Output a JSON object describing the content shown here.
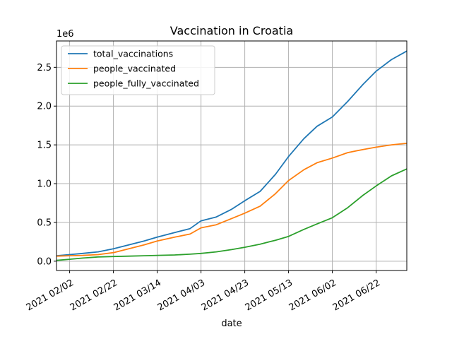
{
  "chart_data": {
    "type": "line",
    "title": "Vaccination in Croatia",
    "xlabel": "date",
    "ylabel": "",
    "y_offset_label": "1e6",
    "grid": true,
    "legend_position": "upper-left",
    "x_tick_labels": [
      "2021 02/02",
      "2021 02/22",
      "2021 03/14",
      "2021 04/03",
      "2021 04/23",
      "2021 05/13",
      "2021 06/02",
      "2021 06/22"
    ],
    "y_ticks": [
      0.0,
      0.5,
      1.0,
      1.5,
      2.0,
      2.5
    ],
    "y_tick_labels": [
      "0.0",
      "0.5",
      "1.0",
      "1.5",
      "2.0",
      "2.5"
    ],
    "xlim": [
      "2021-01-27",
      "2021-07-06"
    ],
    "ylim": [
      -0.12,
      2.84
    ],
    "x": [
      "2021-01-27",
      "2021-02-02",
      "2021-02-08",
      "2021-02-15",
      "2021-02-22",
      "2021-03-01",
      "2021-03-08",
      "2021-03-14",
      "2021-03-22",
      "2021-03-29",
      "2021-04-03",
      "2021-04-10",
      "2021-04-17",
      "2021-04-23",
      "2021-04-30",
      "2021-05-07",
      "2021-05-13",
      "2021-05-20",
      "2021-05-26",
      "2021-06-02",
      "2021-06-09",
      "2021-06-16",
      "2021-06-22",
      "2021-06-29",
      "2021-07-06"
    ],
    "series": [
      {
        "name": "total_vaccinations",
        "color": "#1f77b4",
        "values": [
          0.07,
          0.085,
          0.1,
          0.12,
          0.16,
          0.21,
          0.26,
          0.31,
          0.37,
          0.42,
          0.52,
          0.57,
          0.67,
          0.78,
          0.9,
          1.12,
          1.35,
          1.58,
          1.74,
          1.86,
          2.06,
          2.28,
          2.45,
          2.6,
          2.71
        ]
      },
      {
        "name": "people_vaccinated",
        "color": "#ff7f0e",
        "values": [
          0.065,
          0.07,
          0.075,
          0.085,
          0.11,
          0.16,
          0.21,
          0.26,
          0.31,
          0.35,
          0.43,
          0.47,
          0.55,
          0.62,
          0.71,
          0.87,
          1.04,
          1.18,
          1.27,
          1.33,
          1.4,
          1.44,
          1.47,
          1.5,
          1.52
        ]
      },
      {
        "name": "people_fully_vaccinated",
        "color": "#2ca02c",
        "values": [
          0.01,
          0.025,
          0.04,
          0.055,
          0.06,
          0.065,
          0.07,
          0.075,
          0.08,
          0.09,
          0.1,
          0.12,
          0.15,
          0.18,
          0.22,
          0.27,
          0.32,
          0.41,
          0.48,
          0.56,
          0.69,
          0.85,
          0.97,
          1.1,
          1.19
        ]
      }
    ]
  }
}
